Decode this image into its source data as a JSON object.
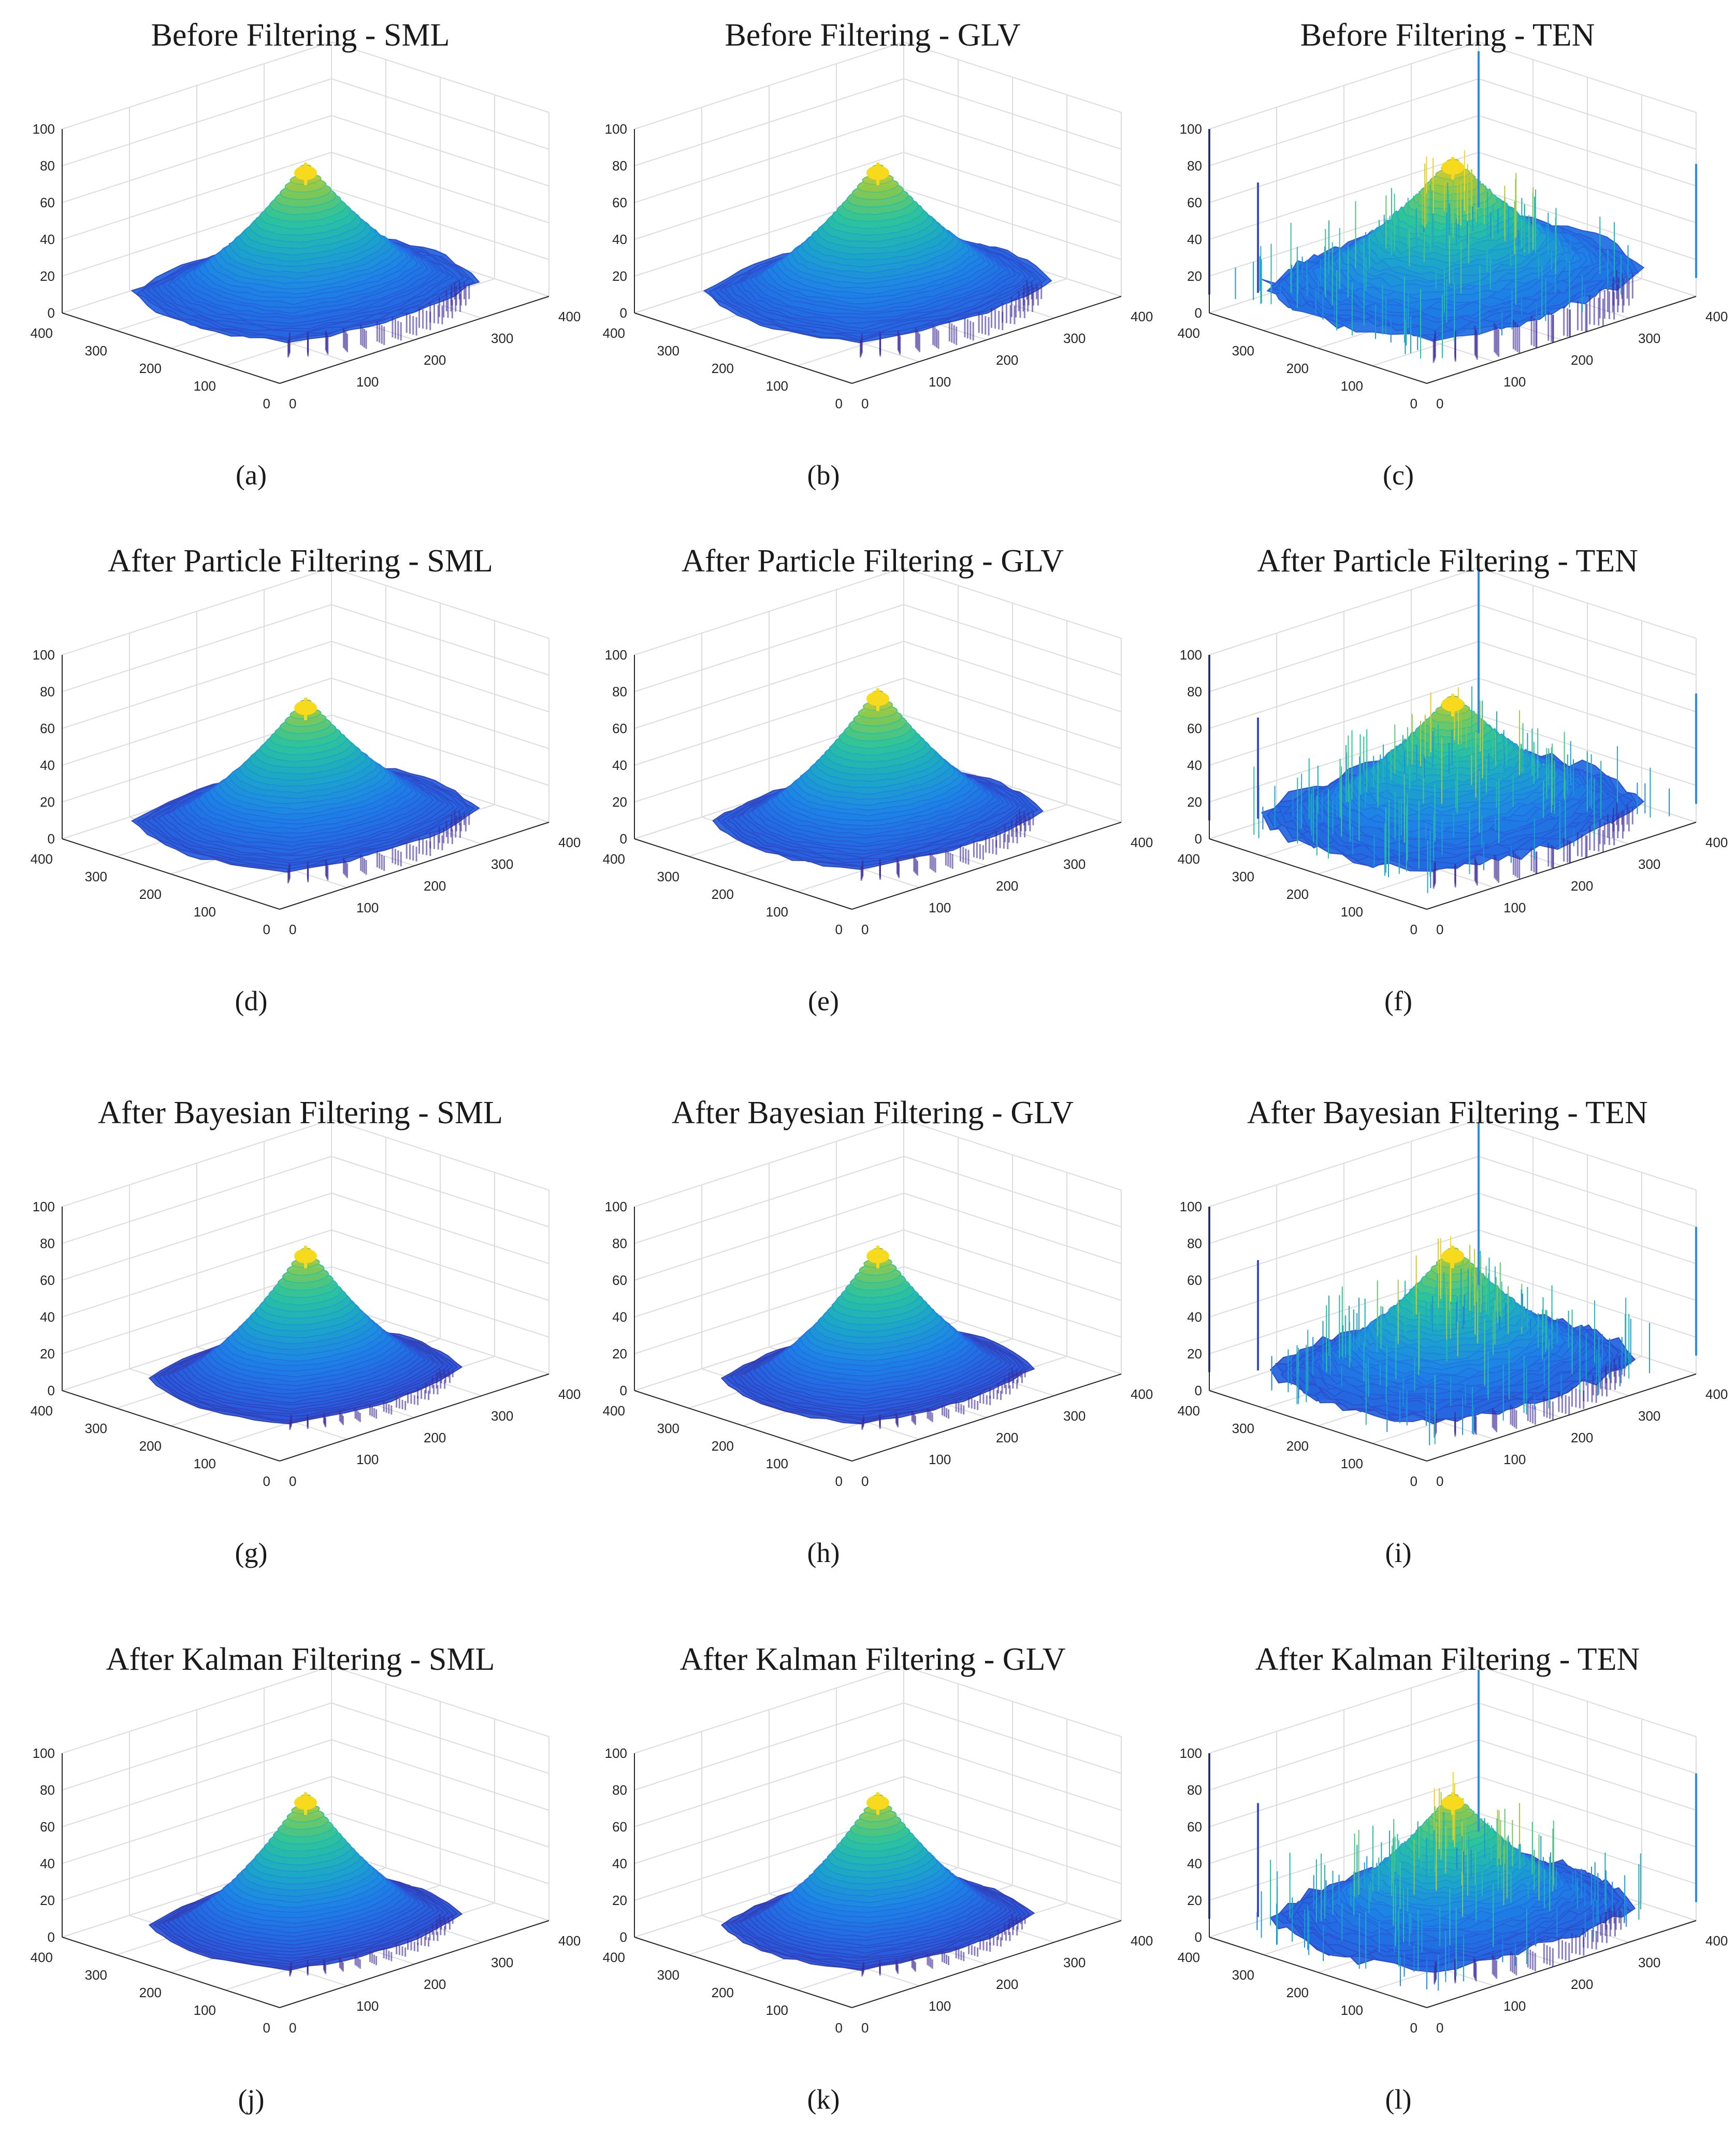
{
  "figure": {
    "description_grid": "4 rows x 3 columns of 3D surface plots"
  },
  "colors": {
    "low": "#3b2a98",
    "mid_low": "#1f78d8",
    "mid": "#1ca7c6",
    "mid_high": "#2ec49a",
    "high": "#c2c23a",
    "peak": "#f7d91d",
    "grid": "#dcdcdc",
    "axis": "#262626"
  },
  "chart_data": [
    {
      "type": "surface",
      "title": "Before Filtering - SML",
      "caption": "(a)",
      "method": "SML",
      "stage": "Before Filtering",
      "zlim": [
        0,
        100
      ],
      "xlim": [
        0,
        400
      ],
      "ylim": [
        0,
        400
      ],
      "z_ticks": [
        "0",
        "20",
        "40",
        "60",
        "80",
        "100"
      ],
      "x_ticks": [
        "0",
        "100",
        "200",
        "300",
        "400"
      ],
      "y_ticks": [
        "0",
        "100",
        "200",
        "300",
        "400"
      ],
      "peak_z": 75,
      "edge_z": 10,
      "spread": 0.55,
      "noise": 0.1,
      "spikes": []
    },
    {
      "type": "surface",
      "title": "Before Filtering - GLV",
      "caption": "(b)",
      "method": "GLV",
      "stage": "Before Filtering",
      "zlim": [
        0,
        100
      ],
      "xlim": [
        0,
        400
      ],
      "ylim": [
        0,
        400
      ],
      "z_ticks": [
        "0",
        "20",
        "40",
        "60",
        "80",
        "100"
      ],
      "x_ticks": [
        "0",
        "100",
        "200",
        "300",
        "400"
      ],
      "y_ticks": [
        "0",
        "100",
        "200",
        "300",
        "400"
      ],
      "peak_z": 75,
      "edge_z": 10,
      "spread": 0.55,
      "noise": 0.1,
      "spikes": []
    },
    {
      "type": "surface",
      "title": "Before Filtering - TEN",
      "caption": "(c)",
      "method": "TEN",
      "stage": "Before Filtering",
      "zlim": [
        0,
        100
      ],
      "xlim": [
        0,
        400
      ],
      "ylim": [
        0,
        400
      ],
      "z_ticks": [
        "0",
        "20",
        "40",
        "60",
        "80",
        "100"
      ],
      "x_ticks": [
        "0",
        "100",
        "200",
        "300",
        "400"
      ],
      "y_ticks": [
        "0",
        "100",
        "200",
        "300",
        "400"
      ],
      "peak_z": 78,
      "edge_z": 15,
      "spread": 0.65,
      "noise": 0.35,
      "spikes": [
        95,
        100,
        72,
        70
      ]
    },
    {
      "type": "surface",
      "title": "After Particle Filtering - SML",
      "caption": "(d)",
      "method": "SML",
      "stage": "After Particle Filtering",
      "zlim": [
        0,
        100
      ],
      "xlim": [
        0,
        400
      ],
      "ylim": [
        0,
        400
      ],
      "z_ticks": [
        "0",
        "20",
        "40",
        "60",
        "80",
        "100"
      ],
      "x_ticks": [
        "0",
        "100",
        "200",
        "300",
        "400"
      ],
      "y_ticks": [
        "0",
        "100",
        "200",
        "300",
        "400"
      ],
      "peak_z": 70,
      "edge_z": 8,
      "spread": 0.55,
      "noise": 0.08,
      "spikes": []
    },
    {
      "type": "surface",
      "title": "After Particle Filtering - GLV",
      "caption": "(e)",
      "method": "GLV",
      "stage": "After Particle Filtering",
      "zlim": [
        0,
        100
      ],
      "xlim": [
        0,
        400
      ],
      "ylim": [
        0,
        400
      ],
      "z_ticks": [
        "0",
        "20",
        "40",
        "60",
        "80",
        "100"
      ],
      "x_ticks": [
        "0",
        "100",
        "200",
        "300",
        "400"
      ],
      "y_ticks": [
        "0",
        "100",
        "200",
        "300",
        "400"
      ],
      "peak_z": 75,
      "edge_z": 8,
      "spread": 0.5,
      "noise": 0.08,
      "spikes": []
    },
    {
      "type": "surface",
      "title": "After Particle Filtering - TEN",
      "caption": "(f)",
      "method": "TEN",
      "stage": "After Particle Filtering",
      "zlim": [
        0,
        100
      ],
      "xlim": [
        0,
        400
      ],
      "ylim": [
        0,
        400
      ],
      "z_ticks": [
        "0",
        "20",
        "40",
        "60",
        "80",
        "100"
      ],
      "x_ticks": [
        "0",
        "100",
        "200",
        "300",
        "400"
      ],
      "y_ticks": [
        "0",
        "100",
        "200",
        "300",
        "400"
      ],
      "peak_z": 72,
      "edge_z": 12,
      "spread": 0.65,
      "noise": 0.35,
      "spikes": [
        98,
        100,
        70,
        65
      ]
    },
    {
      "type": "surface",
      "title": "After Bayesian Filtering - SML",
      "caption": "(g)",
      "method": "SML",
      "stage": "After Bayesian Filtering",
      "zlim": [
        0,
        100
      ],
      "xlim": [
        0,
        400
      ],
      "ylim": [
        0,
        400
      ],
      "z_ticks": [
        "0",
        "20",
        "40",
        "60",
        "80",
        "100"
      ],
      "x_ticks": [
        "0",
        "100",
        "200",
        "300",
        "400"
      ],
      "y_ticks": [
        "0",
        "100",
        "200",
        "300",
        "400"
      ],
      "peak_z": 72,
      "edge_z": 5,
      "spread": 0.45,
      "noise": 0.05,
      "spikes": []
    },
    {
      "type": "surface",
      "title": "After Bayesian Filtering - GLV",
      "caption": "(h)",
      "method": "GLV",
      "stage": "After Bayesian Filtering",
      "zlim": [
        0,
        100
      ],
      "xlim": [
        0,
        400
      ],
      "ylim": [
        0,
        400
      ],
      "z_ticks": [
        "0",
        "20",
        "40",
        "60",
        "80",
        "100"
      ],
      "x_ticks": [
        "0",
        "100",
        "200",
        "300",
        "400"
      ],
      "y_ticks": [
        "0",
        "100",
        "200",
        "300",
        "400"
      ],
      "peak_z": 72,
      "edge_z": 5,
      "spread": 0.45,
      "noise": 0.06,
      "spikes": []
    },
    {
      "type": "surface",
      "title": "After Bayesian Filtering - TEN",
      "caption": "(i)",
      "method": "TEN",
      "stage": "After Bayesian Filtering",
      "zlim": [
        0,
        100
      ],
      "xlim": [
        0,
        400
      ],
      "ylim": [
        0,
        400
      ],
      "z_ticks": [
        "0",
        "20",
        "40",
        "60",
        "80",
        "100"
      ],
      "x_ticks": [
        "0",
        "100",
        "200",
        "300",
        "400"
      ],
      "y_ticks": [
        "0",
        "100",
        "200",
        "300",
        "400"
      ],
      "peak_z": 72,
      "edge_z": 10,
      "spread": 0.6,
      "noise": 0.3,
      "spikes": [
        98,
        100,
        80,
        70
      ]
    },
    {
      "type": "surface",
      "title": "After Kalman Filtering - SML",
      "caption": "(j)",
      "method": "SML",
      "stage": "After Kalman Filtering",
      "zlim": [
        0,
        100
      ],
      "xlim": [
        0,
        400
      ],
      "ylim": [
        0,
        400
      ],
      "z_ticks": [
        "0",
        "20",
        "40",
        "60",
        "80",
        "100"
      ],
      "x_ticks": [
        "0",
        "100",
        "200",
        "300",
        "400"
      ],
      "y_ticks": [
        "0",
        "100",
        "200",
        "300",
        "400"
      ],
      "peak_z": 72,
      "edge_z": 5,
      "spread": 0.45,
      "noise": 0.05,
      "spikes": []
    },
    {
      "type": "surface",
      "title": "After Kalman Filtering - GLV",
      "caption": "(k)",
      "method": "GLV",
      "stage": "After Kalman Filtering",
      "zlim": [
        0,
        100
      ],
      "xlim": [
        0,
        400
      ],
      "ylim": [
        0,
        400
      ],
      "z_ticks": [
        "0",
        "20",
        "40",
        "60",
        "80",
        "100"
      ],
      "x_ticks": [
        "0",
        "100",
        "200",
        "300",
        "400"
      ],
      "y_ticks": [
        "0",
        "100",
        "200",
        "300",
        "400"
      ],
      "peak_z": 72,
      "edge_z": 5,
      "spread": 0.45,
      "noise": 0.06,
      "spikes": []
    },
    {
      "type": "surface",
      "title": "After Kalman Filtering - TEN",
      "caption": "(l)",
      "method": "TEN",
      "stage": "After Kalman Filtering",
      "zlim": [
        0,
        100
      ],
      "xlim": [
        0,
        400
      ],
      "ylim": [
        0,
        400
      ],
      "z_ticks": [
        "0",
        "20",
        "40",
        "60",
        "80",
        "100"
      ],
      "x_ticks": [
        "0",
        "100",
        "200",
        "300",
        "400"
      ],
      "y_ticks": [
        "0",
        "100",
        "200",
        "300",
        "400"
      ],
      "peak_z": 72,
      "edge_z": 10,
      "spread": 0.6,
      "noise": 0.3,
      "spikes": [
        98,
        100,
        80,
        72
      ]
    }
  ]
}
